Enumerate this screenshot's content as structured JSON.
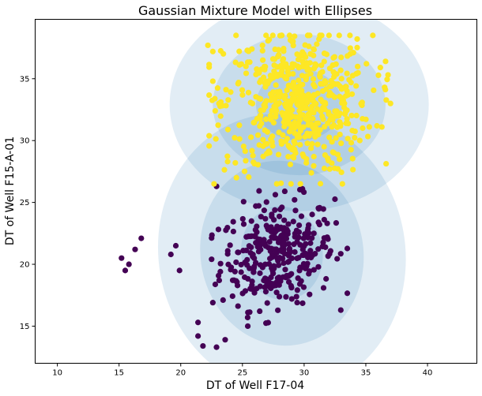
{
  "chart_data": {
    "type": "scatter",
    "title": "Gaussian Mixture Model with Ellipses",
    "xlabel": "DT of Well F17-04",
    "ylabel": "DT of Well F15-A-01",
    "xlim": [
      8.2,
      44
    ],
    "ylim": [
      12,
      39.8
    ],
    "xticks": [
      10,
      15,
      20,
      25,
      30,
      35,
      40
    ],
    "yticks": [
      15,
      20,
      25,
      30,
      35
    ],
    "grid": false,
    "ellipse_color": "#1f77b4",
    "clusters": [
      {
        "color": "#440154",
        "mean": [
          27.8,
          20.9
        ],
        "std": [
          2.3,
          2.1
        ],
        "n": 320,
        "extra_points": [
          [
            15.2,
            20.5
          ],
          [
            15.5,
            19.5
          ],
          [
            15.8,
            20.0
          ],
          [
            16.3,
            21.2
          ],
          [
            16.8,
            22.1
          ],
          [
            19.2,
            20.8
          ],
          [
            19.6,
            21.5
          ],
          [
            19.9,
            19.5
          ],
          [
            21.4,
            15.3
          ],
          [
            21.4,
            14.2
          ],
          [
            21.8,
            13.4
          ],
          [
            22.9,
            13.3
          ],
          [
            22.6,
            16.9
          ],
          [
            22.9,
            26.3
          ],
          [
            23.6,
            13.9
          ]
        ],
        "ellipse": {
          "center": [
            28.2,
            20.9
          ],
          "semi_axes": [
            [
              10.0,
              11.3
            ],
            [
              6.6,
              7.5
            ],
            [
              3.3,
              3.8
            ]
          ],
          "angle_deg": 10
        }
      },
      {
        "color": "#fde725",
        "mean": [
          29.5,
          33.0
        ],
        "std": [
          3.0,
          2.9
        ],
        "n": 560,
        "extra_points": [
          [
            22.2,
            37.7
          ],
          [
            22.6,
            37.2
          ],
          [
            22.6,
            34.8
          ],
          [
            23.1,
            33.0
          ],
          [
            23.8,
            28.3
          ],
          [
            36.3,
            31.1
          ],
          [
            37.0,
            33.0
          ],
          [
            36.6,
            36.4
          ],
          [
            33.1,
            26.5
          ],
          [
            30.3,
            38.5
          ]
        ],
        "ellipse": {
          "center": [
            29.6,
            32.9
          ],
          "semi_axes": [
            [
              10.5,
              8.6
            ],
            [
              7.0,
              5.7
            ],
            [
              3.5,
              2.9
            ]
          ],
          "angle_deg": 0
        }
      }
    ]
  }
}
